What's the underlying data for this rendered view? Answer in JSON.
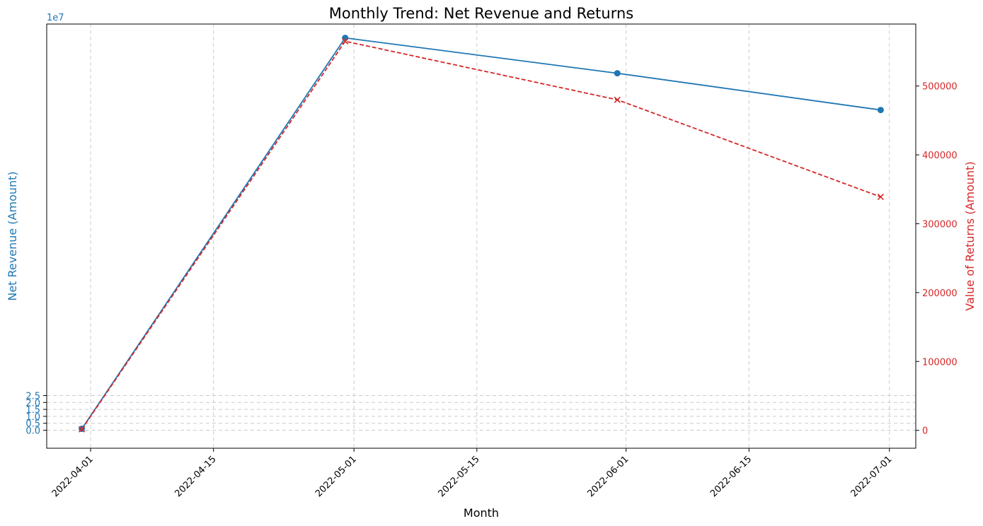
{
  "chart_data": {
    "type": "line",
    "title": "Monthly Trend: Net Revenue and Returns",
    "xlabel": "Month",
    "ylabel_left": "Net Revenue (Amount)",
    "ylabel_right": "Value of Returns (Amount)",
    "left_offset_label": "1e7",
    "grid": true,
    "x_type": "date",
    "x": [
      "2022-03-31",
      "2022-04-30",
      "2022-05-31",
      "2022-06-30"
    ],
    "xlim": [
      "2022-03-27",
      "2022-07-04"
    ],
    "x_ticks": [
      "2022-04-01",
      "2022-04-15",
      "2022-05-01",
      "2022-05-15",
      "2022-06-01",
      "2022-06-15",
      "2022-07-01"
    ],
    "y_left": {
      "lim": [
        -1.3,
        29.3
      ],
      "ticks": [
        0.0,
        0.5,
        1.0,
        1.5,
        2.0,
        2.5
      ],
      "tick_labels": [
        "0.0",
        "0.5",
        "1.0",
        "1.5",
        "2.0",
        "2.5"
      ]
    },
    "y_right": {
      "lim": [
        -26000,
        590000
      ],
      "ticks": [
        0,
        100000,
        200000,
        300000,
        400000,
        500000
      ],
      "tick_labels": [
        "0",
        "100000",
        "200000",
        "300000",
        "400000",
        "500000"
      ]
    },
    "series": [
      {
        "axis": "left",
        "color": "#1f77b4",
        "marker": "circle",
        "linestyle": "solid",
        "values": [
          0.1,
          28.3,
          25.75,
          23.1
        ]
      },
      {
        "axis": "right",
        "color": "#d62728",
        "marker": "x",
        "linestyle": "dashed",
        "values": [
          1500,
          565000,
          480000,
          339000
        ]
      }
    ]
  }
}
